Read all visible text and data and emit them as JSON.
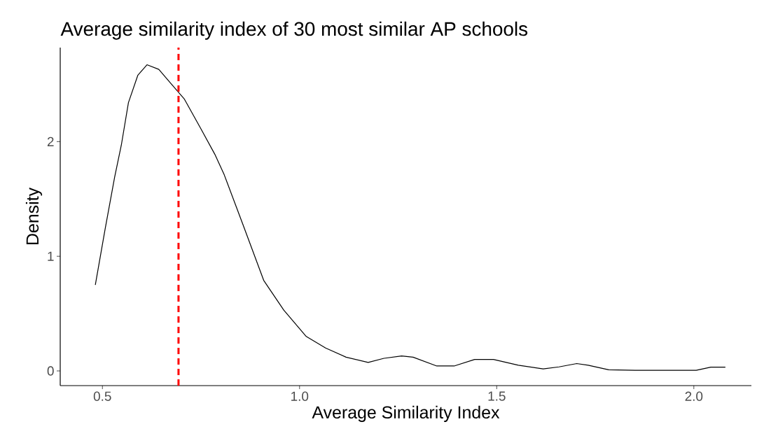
{
  "chart_data": {
    "type": "line",
    "title": "Average similarity index of 30 most similar AP schools",
    "xlabel": "Average Similarity Index",
    "ylabel": "Density",
    "series": [
      {
        "color": "#000000",
        "x": [
          0.482,
          0.507,
          0.531,
          0.548,
          0.566,
          0.59,
          0.613,
          0.643,
          0.673,
          0.708,
          0.75,
          0.785,
          0.809,
          0.856,
          0.909,
          0.96,
          1.017,
          1.066,
          1.118,
          1.174,
          1.214,
          1.259,
          1.288,
          1.348,
          1.392,
          1.444,
          1.492,
          1.555,
          1.618,
          1.658,
          1.703,
          1.732,
          1.784,
          1.851,
          2.006,
          2.043,
          2.08
        ],
        "values": [
          0.75,
          1.24,
          1.69,
          1.97,
          2.34,
          2.58,
          2.67,
          2.63,
          2.51,
          2.37,
          2.11,
          1.89,
          1.71,
          1.28,
          0.79,
          0.53,
          0.3,
          0.2,
          0.12,
          0.074,
          0.11,
          0.13,
          0.12,
          0.043,
          0.043,
          0.1,
          0.1,
          0.05,
          0.018,
          0.035,
          0.064,
          0.05,
          0.01,
          0.005,
          0.005,
          0.033,
          0.033
        ]
      }
    ],
    "ref_lines": [
      {
        "axis": "x",
        "value": 0.693,
        "color": "#ff0000",
        "line_style": "dashed"
      }
    ],
    "xlim": [
      0.393,
      2.146
    ],
    "ylim": [
      -0.128,
      2.82
    ],
    "xticks": [
      {
        "value": 0.5,
        "label": "0.5"
      },
      {
        "value": 1.0,
        "label": "1.0"
      },
      {
        "value": 1.5,
        "label": "1.5"
      },
      {
        "value": 2.0,
        "label": "2.0"
      }
    ],
    "yticks": [
      0,
      1,
      2
    ],
    "grid": false,
    "marker": "none",
    "line_style": "solid"
  }
}
